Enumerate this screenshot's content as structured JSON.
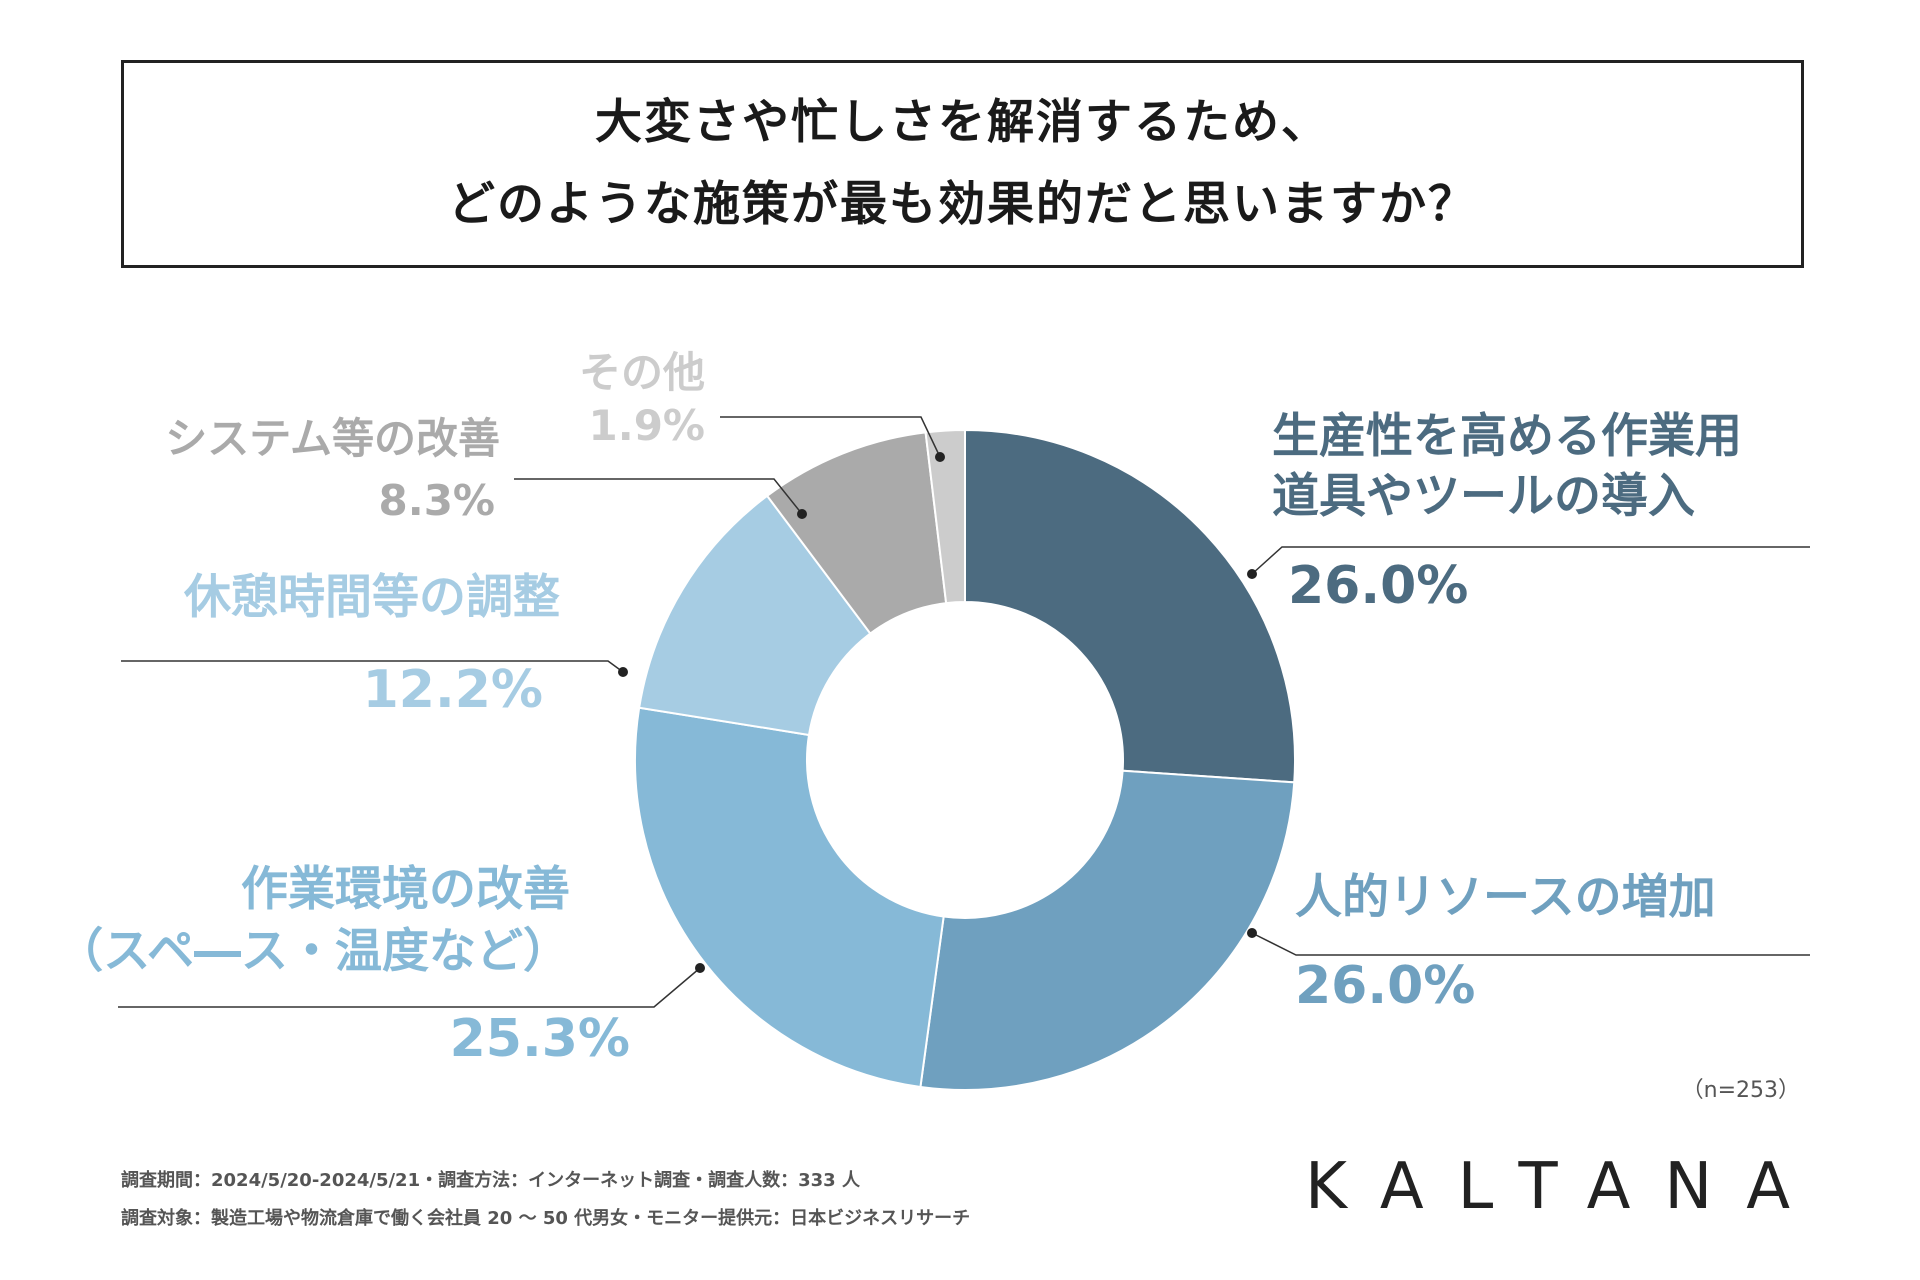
{
  "title": {
    "line1": "大変さや忙しさを解消するため、",
    "line2": "どのような施策が最も効果的だと思いますか？"
  },
  "chart_data": {
    "type": "pie",
    "variant": "donut",
    "slices": [
      {
        "label_lines": [
          "生産性を高める作業用",
          "道具やツールの導入"
        ],
        "value": 26.0,
        "value_label": "26.0%",
        "color": "#4c6b80"
      },
      {
        "label_lines": [
          "人的リソースの増加"
        ],
        "value": 26.0,
        "value_label": "26.0%",
        "color": "#6fa0bf"
      },
      {
        "label_lines": [
          "作業環境の改善",
          "（スペ―ス・温度など）"
        ],
        "value": 25.3,
        "value_label": "25.3%",
        "color": "#86b9d7"
      },
      {
        "label_lines": [
          "休憩時間等の調整"
        ],
        "value": 12.2,
        "value_label": "12.2%",
        "color": "#a6cce3"
      },
      {
        "label_lines": [
          "システム等の改善"
        ],
        "value": 8.3,
        "value_label": "8.3%",
        "color": "#aaaaaa"
      },
      {
        "label_lines": [
          "その他"
        ],
        "value": 1.9,
        "value_label": "1.9%",
        "color": "#cccccc"
      }
    ],
    "sample_size": "（n=253）"
  },
  "footnotes": {
    "line1": "調査期間：2024/5/20-2024/5/21・調査方法：インターネット調査・調査人数：333 人",
    "line2": "調査対象：製造工場や物流倉庫で働く会社員 20 ～ 50 代男女・モニター提供元：日本ビジネスリサーチ"
  },
  "logo": "KALTANA"
}
